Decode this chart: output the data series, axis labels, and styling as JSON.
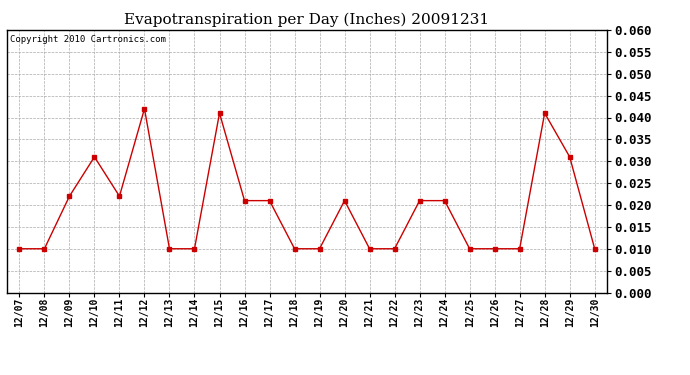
{
  "title": "Evapotranspiration per Day (Inches) 20091231",
  "copyright_text": "Copyright 2010 Cartronics.com",
  "x_labels": [
    "12/07",
    "12/08",
    "12/09",
    "12/10",
    "12/11",
    "12/12",
    "12/13",
    "12/14",
    "12/15",
    "12/16",
    "12/17",
    "12/18",
    "12/19",
    "12/20",
    "12/21",
    "12/22",
    "12/23",
    "12/24",
    "12/25",
    "12/26",
    "12/27",
    "12/28",
    "12/29",
    "12/30"
  ],
  "y_values": [
    0.01,
    0.01,
    0.022,
    0.031,
    0.022,
    0.042,
    0.01,
    0.01,
    0.041,
    0.021,
    0.021,
    0.01,
    0.01,
    0.021,
    0.01,
    0.01,
    0.021,
    0.021,
    0.01,
    0.01,
    0.01,
    0.041,
    0.031,
    0.01
  ],
  "line_color": "#cc0000",
  "marker": "s",
  "marker_size": 3,
  "ylim": [
    0.0,
    0.06
  ],
  "yticks": [
    0.0,
    0.005,
    0.01,
    0.015,
    0.02,
    0.025,
    0.03,
    0.035,
    0.04,
    0.045,
    0.05,
    0.055,
    0.06
  ],
  "grid_color": "#aaaaaa",
  "background_color": "#ffffff",
  "title_fontsize": 11,
  "copyright_fontsize": 6.5,
  "ytick_fontsize": 9,
  "xtick_fontsize": 7,
  "figsize": [
    6.9,
    3.75
  ],
  "dpi": 100
}
